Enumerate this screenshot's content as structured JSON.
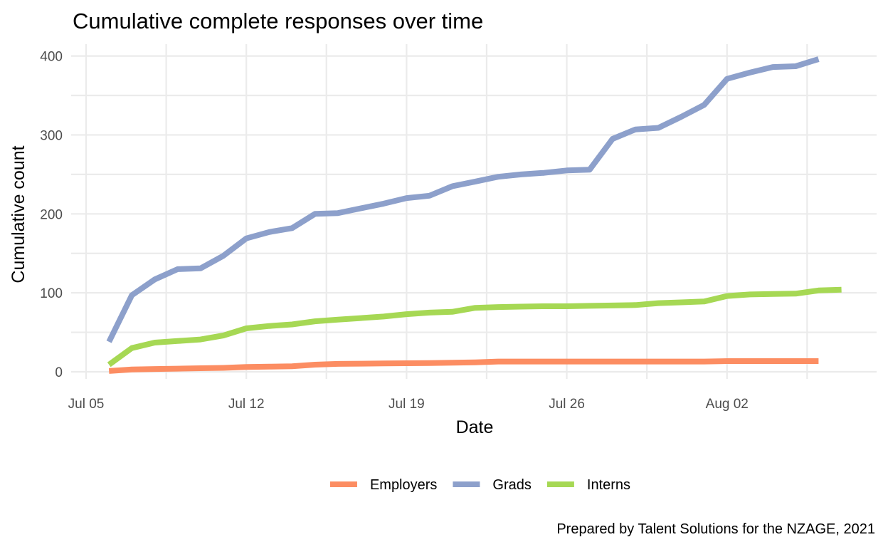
{
  "chart_data": {
    "type": "line",
    "title": "Cumulative complete responses over time",
    "xlabel": "Date",
    "ylabel": "Cumulative count",
    "caption": "Prepared by Talent Solutions for the NZAGE, 2021",
    "x_start": "2021-07-05",
    "x_end": "2021-08-09",
    "xlim": [
      "2021-07-05",
      "2021-08-10"
    ],
    "ylim": [
      0,
      410
    ],
    "x_ticks": [
      {
        "date": "2021-07-05",
        "label": "Jul 05"
      },
      {
        "date": "2021-07-12",
        "label": "Jul 12"
      },
      {
        "date": "2021-07-19",
        "label": "Jul 19"
      },
      {
        "date": "2021-07-26",
        "label": "Jul 26"
      },
      {
        "date": "2021-08-02",
        "label": "Aug 02"
      }
    ],
    "y_ticks": [
      0,
      100,
      200,
      300,
      400
    ],
    "grid": true,
    "legend_position": "bottom",
    "series": [
      {
        "name": "Employers",
        "color": "#fc8d62",
        "points": [
          [
            "2021-07-06",
            1
          ],
          [
            "2021-07-07",
            3
          ],
          [
            "2021-07-08",
            3.5
          ],
          [
            "2021-07-09",
            4
          ],
          [
            "2021-07-10",
            4.5
          ],
          [
            "2021-07-11",
            5
          ],
          [
            "2021-07-12",
            6
          ],
          [
            "2021-07-13",
            6.5
          ],
          [
            "2021-07-14",
            7
          ],
          [
            "2021-07-15",
            9
          ],
          [
            "2021-07-16",
            10
          ],
          [
            "2021-07-17",
            10.3
          ],
          [
            "2021-07-18",
            10.6
          ],
          [
            "2021-07-19",
            10.8
          ],
          [
            "2021-07-20",
            11
          ],
          [
            "2021-07-21",
            11.5
          ],
          [
            "2021-07-22",
            12
          ],
          [
            "2021-07-23",
            13
          ],
          [
            "2021-07-24",
            13
          ],
          [
            "2021-07-25",
            13
          ],
          [
            "2021-07-26",
            13
          ],
          [
            "2021-07-27",
            13
          ],
          [
            "2021-07-28",
            13
          ],
          [
            "2021-07-29",
            13
          ],
          [
            "2021-07-30",
            13
          ],
          [
            "2021-07-31",
            13
          ],
          [
            "2021-08-01",
            13
          ],
          [
            "2021-08-02",
            13.5
          ],
          [
            "2021-08-03",
            13.5
          ],
          [
            "2021-08-04",
            13.5
          ],
          [
            "2021-08-05",
            13.5
          ],
          [
            "2021-08-06",
            13.5
          ]
        ]
      },
      {
        "name": "Grads",
        "color": "#8da0cb",
        "points": [
          [
            "2021-07-06",
            38
          ],
          [
            "2021-07-07",
            97
          ],
          [
            "2021-07-08",
            117
          ],
          [
            "2021-07-09",
            130
          ],
          [
            "2021-07-10",
            131
          ],
          [
            "2021-07-11",
            147
          ],
          [
            "2021-07-12",
            169
          ],
          [
            "2021-07-13",
            177
          ],
          [
            "2021-07-14",
            182
          ],
          [
            "2021-07-15",
            200
          ],
          [
            "2021-07-16",
            201
          ],
          [
            "2021-07-17",
            207
          ],
          [
            "2021-07-18",
            213
          ],
          [
            "2021-07-19",
            220
          ],
          [
            "2021-07-20",
            223
          ],
          [
            "2021-07-21",
            235
          ],
          [
            "2021-07-22",
            241
          ],
          [
            "2021-07-23",
            247
          ],
          [
            "2021-07-24",
            250
          ],
          [
            "2021-07-25",
            252
          ],
          [
            "2021-07-26",
            255
          ],
          [
            "2021-07-27",
            256
          ],
          [
            "2021-07-28",
            295
          ],
          [
            "2021-07-29",
            307
          ],
          [
            "2021-07-30",
            309
          ],
          [
            "2021-07-31",
            323
          ],
          [
            "2021-08-01",
            338
          ],
          [
            "2021-08-02",
            371
          ],
          [
            "2021-08-03",
            379
          ],
          [
            "2021-08-04",
            386
          ],
          [
            "2021-08-05",
            387
          ],
          [
            "2021-08-06",
            396
          ]
        ]
      },
      {
        "name": "Interns",
        "color": "#a6d854",
        "points": [
          [
            "2021-07-06",
            9
          ],
          [
            "2021-07-07",
            30
          ],
          [
            "2021-07-08",
            37
          ],
          [
            "2021-07-09",
            39
          ],
          [
            "2021-07-10",
            41
          ],
          [
            "2021-07-11",
            46
          ],
          [
            "2021-07-12",
            55
          ],
          [
            "2021-07-13",
            58
          ],
          [
            "2021-07-14",
            60
          ],
          [
            "2021-07-15",
            64
          ],
          [
            "2021-07-16",
            66
          ],
          [
            "2021-07-17",
            68
          ],
          [
            "2021-07-18",
            70
          ],
          [
            "2021-07-19",
            73
          ],
          [
            "2021-07-20",
            75
          ],
          [
            "2021-07-21",
            76
          ],
          [
            "2021-07-22",
            81
          ],
          [
            "2021-07-23",
            82
          ],
          [
            "2021-07-24",
            82.5
          ],
          [
            "2021-07-25",
            83
          ],
          [
            "2021-07-26",
            83
          ],
          [
            "2021-07-27",
            83.5
          ],
          [
            "2021-07-28",
            84
          ],
          [
            "2021-07-29",
            84.5
          ],
          [
            "2021-07-30",
            87
          ],
          [
            "2021-07-31",
            88
          ],
          [
            "2021-08-01",
            89
          ],
          [
            "2021-08-02",
            96
          ],
          [
            "2021-08-03",
            98
          ],
          [
            "2021-08-04",
            98.5
          ],
          [
            "2021-08-05",
            99
          ],
          [
            "2021-08-06",
            103
          ],
          [
            "2021-08-07",
            104
          ]
        ]
      }
    ]
  }
}
